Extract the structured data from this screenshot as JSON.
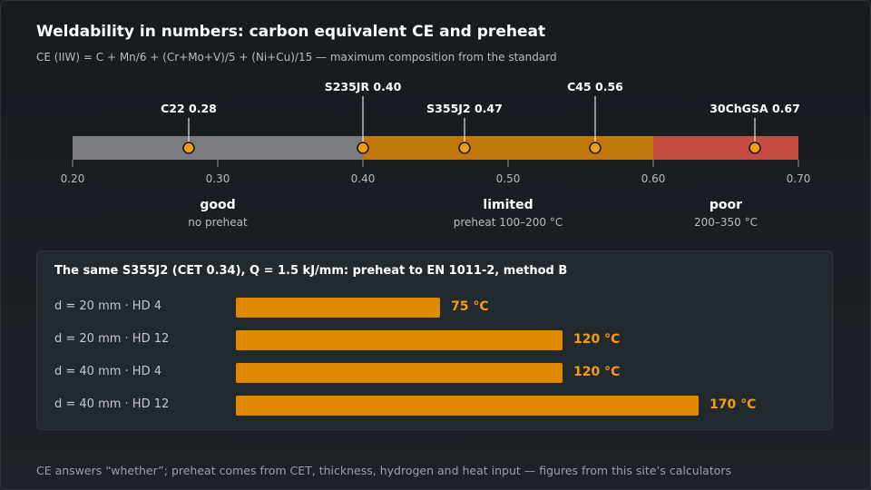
{
  "header": {
    "title": "Weldability in numbers: carbon equivalent CE and preheat",
    "subtitle": "CE (IIW) = C + Mn/6 + (Cr+Mo+V)/5 + (Ni+Cu)/15 — maximum composition from the standard"
  },
  "chart_data": [
    {
      "type": "scale",
      "xlim": [
        0.2,
        0.7
      ],
      "ticks": [
        "0.20",
        "0.30",
        "0.40",
        "0.50",
        "0.60",
        "0.70"
      ],
      "tick_values": [
        0.2,
        0.3,
        0.4,
        0.5,
        0.6,
        0.7
      ],
      "zones": [
        {
          "from": 0.2,
          "to": 0.4,
          "label": "good",
          "note": "no preheat",
          "color": "#7b7d80"
        },
        {
          "from": 0.4,
          "to": 0.6,
          "label": "limited",
          "note": "preheat 100–200 °C",
          "color": "#c2780b"
        },
        {
          "from": 0.6,
          "to": 0.7,
          "label": "poor",
          "note": "200–350 °C",
          "color": "#c44b42"
        }
      ],
      "points": [
        {
          "name": "C22",
          "value": 0.28,
          "label": "C22 0.28"
        },
        {
          "name": "S235JR",
          "value": 0.4,
          "label": "S235JR 0.40"
        },
        {
          "name": "S355J2",
          "value": 0.47,
          "label": "S355J2 0.47"
        },
        {
          "name": "C45",
          "value": 0.56,
          "label": "C45 0.56"
        },
        {
          "name": "30ChGSA",
          "value": 0.67,
          "label": "30ChGSA 0.67"
        }
      ],
      "marker_color": "#f39c12"
    },
    {
      "type": "bar",
      "orientation": "horizontal",
      "title": "The same S355J2 (CET 0.34), Q = 1.5 kJ/mm: preheat to EN 1011-2, method B",
      "categories": [
        "d = 20 mm · HD 4",
        "d = 20 mm · HD 12",
        "d = 40 mm · HD 4",
        "d = 40 mm · HD 12"
      ],
      "values": [
        75,
        120,
        120,
        170
      ],
      "value_labels": [
        "75 °C",
        "120 °C",
        "120 °C",
        "170 °C"
      ],
      "unit": "°C",
      "bar_color": "#e08a00"
    }
  ],
  "footer": "CE answers “whether”; preheat comes from CET, thickness, hydrogen and heat input — figures from this site’s calculators"
}
